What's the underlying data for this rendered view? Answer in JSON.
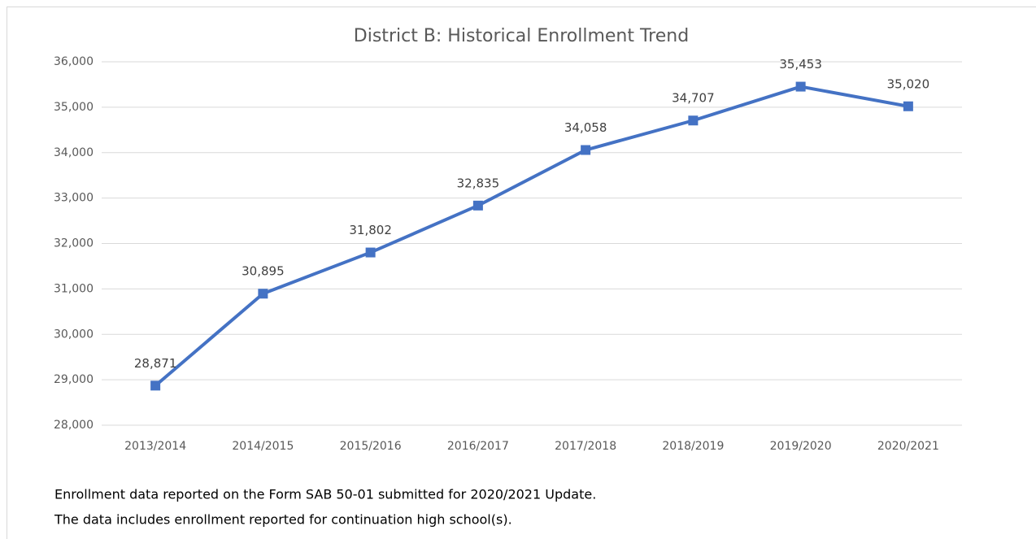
{
  "chart_data": {
    "type": "line",
    "title": "District B: Historical Enrollment Trend",
    "categories": [
      "2013/2014",
      "2014/2015",
      "2015/2016",
      "2016/2017",
      "2017/2018",
      "2018/2019",
      "2019/2020",
      "2020/2021"
    ],
    "series": [
      {
        "color": "#4472c4",
        "values": [
          28871,
          30895,
          31802,
          32835,
          34058,
          34707,
          35453,
          35020
        ],
        "value_labels": [
          "28,871",
          "30,895",
          "31,802",
          "32,835",
          "34,058",
          "34,707",
          "35,453",
          "35,020"
        ]
      }
    ],
    "ylim": [
      28000,
      36000
    ],
    "yticks": [
      {
        "value": 28000,
        "label": "28,000"
      },
      {
        "value": 29000,
        "label": "29,000"
      },
      {
        "value": 30000,
        "label": "30,000"
      },
      {
        "value": 31000,
        "label": "31,000"
      },
      {
        "value": 32000,
        "label": "32,000"
      },
      {
        "value": 33000,
        "label": "33,000"
      },
      {
        "value": 34000,
        "label": "34,000"
      },
      {
        "value": 35000,
        "label": "35,000"
      },
      {
        "value": 36000,
        "label": "36,000"
      }
    ],
    "grid": true,
    "notes": [
      "Enrollment data reported on the Form SAB 50-01 submitted for 2020/2021 Update.",
      "The data includes enrollment reported for continuation high school(s)."
    ]
  }
}
